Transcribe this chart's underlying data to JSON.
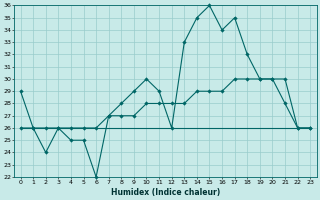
{
  "xlabel": "Humidex (Indice chaleur)",
  "background_color": "#c8eae8",
  "grid_color": "#99cccc",
  "line_color": "#006666",
  "hours": [
    0,
    1,
    2,
    3,
    4,
    5,
    6,
    7,
    8,
    9,
    10,
    11,
    12,
    13,
    14,
    15,
    16,
    17,
    18,
    19,
    20,
    21,
    22,
    23
  ],
  "line_main": [
    29,
    26,
    24,
    26,
    25,
    25,
    22,
    27,
    28,
    29,
    30,
    29,
    26,
    33,
    35,
    36,
    34,
    35,
    32,
    30,
    30,
    28,
    26,
    26
  ],
  "line_smooth": [
    26,
    26,
    26,
    26,
    26,
    26,
    26,
    27,
    27,
    27,
    28,
    28,
    28,
    28,
    29,
    29,
    29,
    30,
    30,
    30,
    30,
    30,
    26,
    26
  ],
  "line_flat": [
    26,
    26,
    26,
    26,
    26,
    26,
    26,
    26,
    26,
    26,
    26,
    26,
    26,
    26,
    26,
    26,
    26,
    26,
    26,
    26,
    26,
    26,
    26,
    26
  ],
  "ylim": [
    22,
    36
  ],
  "xlim": [
    -0.5,
    23.5
  ],
  "yticks": [
    22,
    23,
    24,
    25,
    26,
    27,
    28,
    29,
    30,
    31,
    32,
    33,
    34,
    35,
    36
  ]
}
